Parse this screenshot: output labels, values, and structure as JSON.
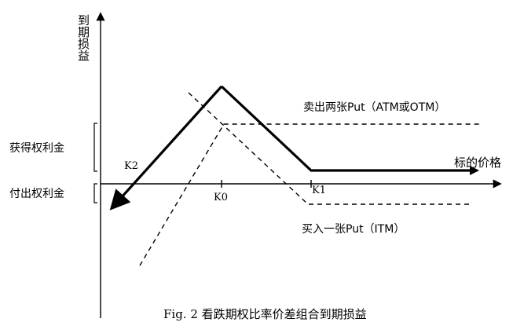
{
  "axes": {
    "y_label": "到期损益",
    "x_label": "标的价格"
  },
  "ticks": {
    "k2": "K2",
    "k0": "K0",
    "k1": "K1"
  },
  "annotations": {
    "premium_received": "获得权利金",
    "premium_paid": "付出权利金",
    "sell_leg": "卖出两张Put（ATM或OTM）",
    "buy_leg": "买入一张Put（ITM）"
  },
  "caption": "Fig. 2 看跌期权比率价差组合到期损益"
}
